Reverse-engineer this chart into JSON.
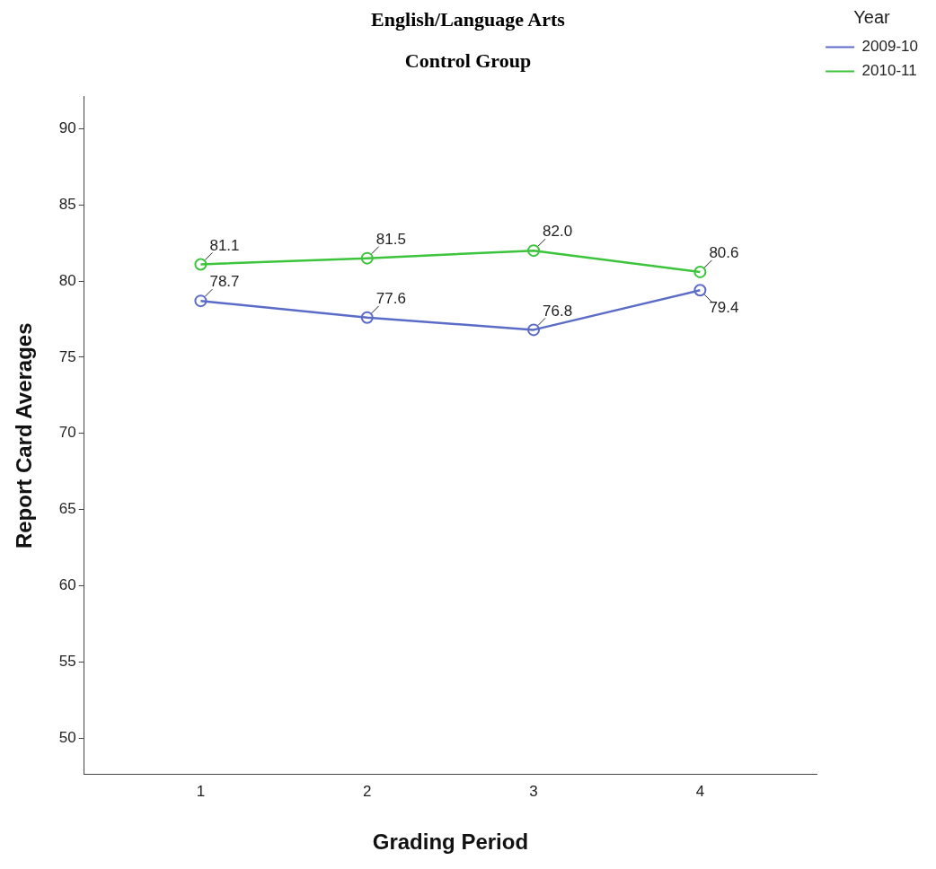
{
  "chart_data": {
    "type": "line",
    "title": "English/Language Arts",
    "subtitle": "Control Group",
    "xlabel": "Grading Period",
    "ylabel": "Report Card Averages",
    "legend_title": "Year",
    "x": [
      1,
      2,
      3,
      4
    ],
    "series": [
      {
        "name": "2009-10",
        "color": "#5b6cc8",
        "values": [
          78.7,
          77.6,
          76.8,
          79.4
        ],
        "value_labels": [
          "78.7",
          "77.6",
          "76.8",
          "79.4"
        ]
      },
      {
        "name": "2010-11",
        "color": "#3cc43c",
        "values": [
          81.1,
          81.5,
          82.0,
          80.6
        ],
        "value_labels": [
          "81.1",
          "81.5",
          "82.0",
          "80.6"
        ]
      }
    ],
    "xlim": [
      0.3,
      4.7
    ],
    "xticks": [
      1,
      2,
      3,
      4
    ],
    "ylim": [
      47.6,
      92.1
    ],
    "yticks": [
      50,
      55,
      60,
      65,
      70,
      75,
      80,
      85,
      90
    ],
    "grid": false,
    "legend": "top right",
    "marker": "circle",
    "line_style": "solid"
  }
}
